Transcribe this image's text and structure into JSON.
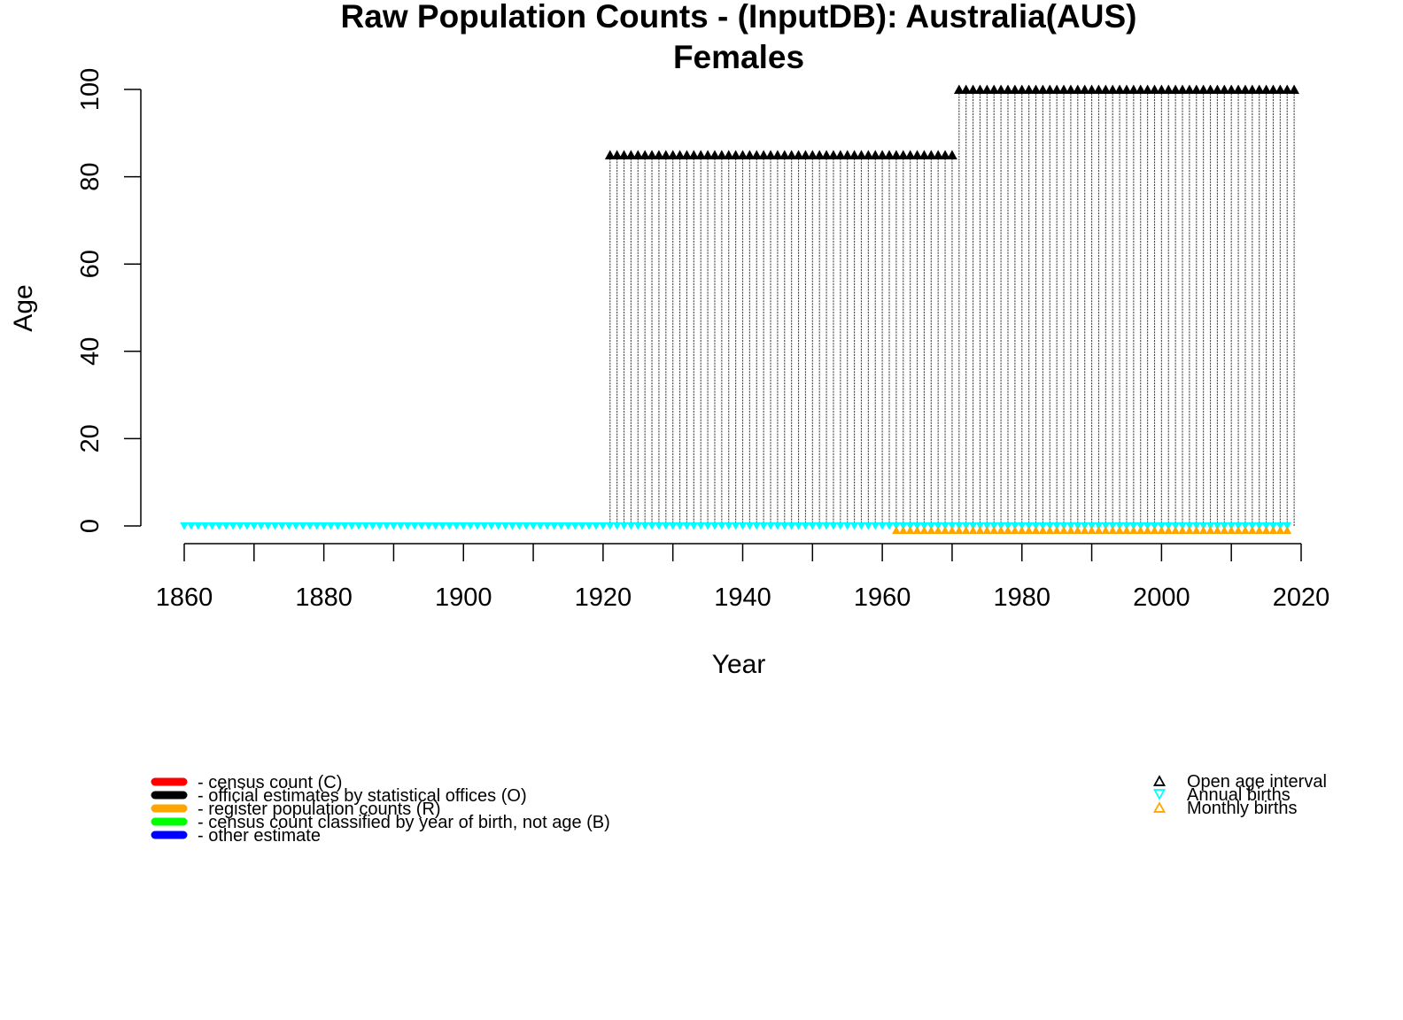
{
  "chart_data": {
    "type": "scatter",
    "title": "Raw Population Counts - (InputDB): Australia(AUS)",
    "subtitle": "Females",
    "xlabel": "Year",
    "ylabel": "Age",
    "xlim": [
      1860,
      2020
    ],
    "ylim": [
      0,
      100
    ],
    "x_ticks": [
      "1860",
      "1880",
      "1900",
      "1920",
      "1940",
      "1960",
      "1980",
      "2000",
      "2020"
    ],
    "y_ticks": [
      "0",
      "20",
      "40",
      "60",
      "80",
      "100"
    ],
    "grid": false,
    "series": [
      {
        "name": "official estimates by statistical offices (O)",
        "color": "#000000",
        "kind": "age-columns",
        "segments": [
          {
            "years": [
              1921,
              1970
            ],
            "max_age": 85
          },
          {
            "years": [
              1971,
              2019
            ],
            "max_age": 100
          }
        ]
      },
      {
        "name": "Open age interval",
        "color": "#000000",
        "marker": "triangle-up",
        "segments": [
          {
            "years": [
              1921,
              1970
            ],
            "age": 85
          },
          {
            "years": [
              1971,
              2019
            ],
            "age": 100
          }
        ]
      },
      {
        "name": "Annual births",
        "color": "#00FFFF",
        "marker": "triangle-down",
        "years": [
          1860,
          2018
        ],
        "age": 0
      },
      {
        "name": "Monthly births",
        "color": "#FFA500",
        "marker": "triangle-up",
        "years": [
          1962,
          2018
        ],
        "age": -1
      }
    ],
    "legend_left": {
      "placement": "bottom-left",
      "items": [
        {
          "label": "- census count (C)",
          "color": "#FF0000"
        },
        {
          "label": "- official estimates by statistical offices (O)",
          "color": "#000000"
        },
        {
          "label": "- register population counts (R)",
          "color": "#FFA500"
        },
        {
          "label": "- census count classified by year of birth, not age (B)",
          "color": "#00FF00"
        },
        {
          "label": "- other estimate",
          "color": "#0000FF"
        }
      ]
    },
    "legend_right": {
      "placement": "bottom-right",
      "items": [
        {
          "label": "Open age interval",
          "color": "#000000",
          "marker": "triangle-up"
        },
        {
          "label": "Annual births",
          "color": "#00FFFF",
          "marker": "triangle-down"
        },
        {
          "label": "Monthly births",
          "color": "#FFA500",
          "marker": "triangle-up"
        }
      ]
    }
  }
}
